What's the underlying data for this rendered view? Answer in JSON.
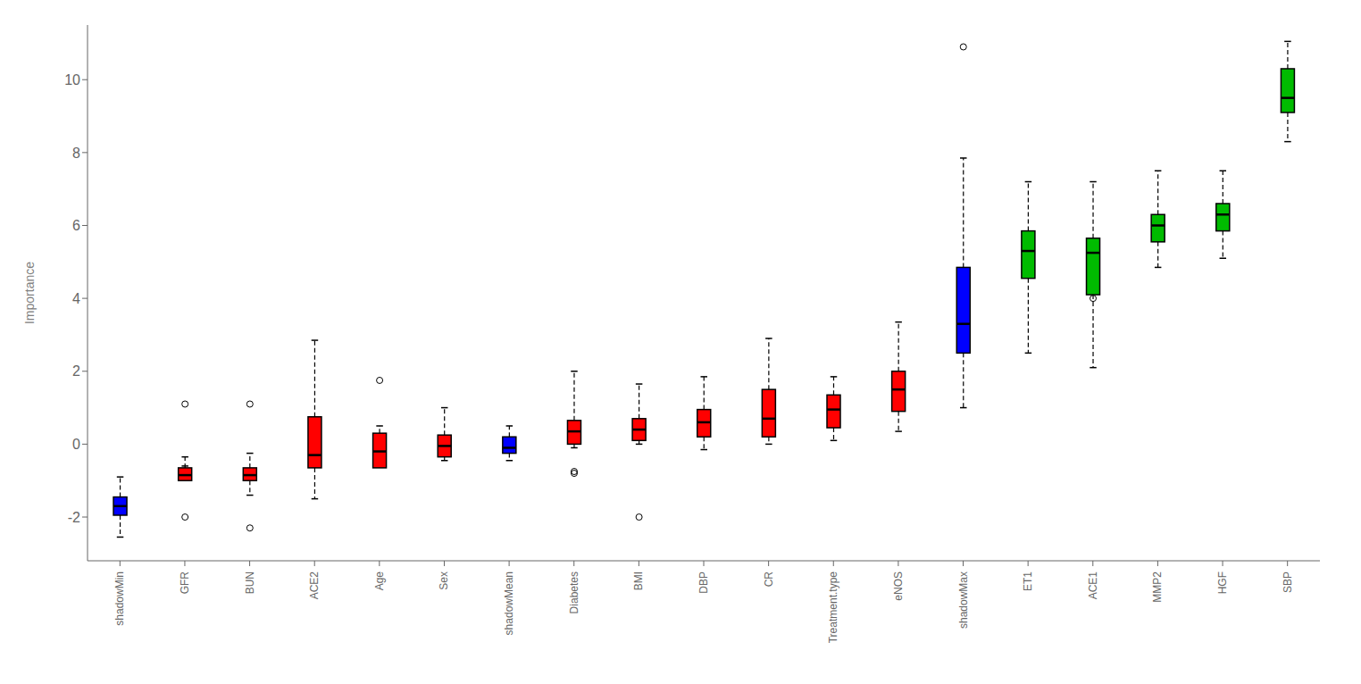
{
  "chart_data": {
    "type": "box",
    "ylabel": "Importance",
    "categories": [
      "shadowMin",
      "GFR",
      "BUN",
      "ACE2",
      "Age",
      "Sex",
      "shadowMean",
      "Diabetes",
      "BMI",
      "DBP",
      "CR",
      "Treatment.type",
      "eNOS",
      "shadowMax",
      "ET1",
      "ACE1",
      "MMP2",
      "HGF",
      "SBP"
    ],
    "colors": [
      "#0000FF",
      "#FF0000",
      "#FF0000",
      "#FF0000",
      "#FF0000",
      "#FF0000",
      "#0000FF",
      "#FF0000",
      "#FF0000",
      "#FF0000",
      "#FF0000",
      "#FF0000",
      "#FF0000",
      "#0000FF",
      "#00BB00",
      "#00BB00",
      "#00BB00",
      "#00BB00",
      "#00BB00"
    ],
    "boxes": [
      {
        "med": -1.7,
        "q1": -1.95,
        "q3": -1.45,
        "whislo": -2.55,
        "whishi": -0.9,
        "fliers": []
      },
      {
        "med": -0.85,
        "q1": -1.0,
        "q3": -0.65,
        "whislo": -0.6,
        "whishi": -0.35,
        "fliers": [
          -2.0,
          1.1
        ]
      },
      {
        "med": -0.85,
        "q1": -1.0,
        "q3": -0.65,
        "whislo": -1.4,
        "whishi": -0.25,
        "fliers": [
          -2.3,
          1.1
        ]
      },
      {
        "med": -0.3,
        "q1": -0.65,
        "q3": 0.75,
        "whislo": -1.5,
        "whishi": 2.85,
        "fliers": []
      },
      {
        "med": -0.2,
        "q1": -0.65,
        "q3": 0.3,
        "whislo": -0.5,
        "whishi": 0.5,
        "fliers": [
          1.75
        ]
      },
      {
        "med": -0.05,
        "q1": -0.35,
        "q3": 0.25,
        "whislo": -0.45,
        "whishi": 1.0,
        "fliers": []
      },
      {
        "med": -0.1,
        "q1": -0.25,
        "q3": 0.2,
        "whislo": -0.45,
        "whishi": 0.5,
        "fliers": []
      },
      {
        "med": 0.35,
        "q1": 0.0,
        "q3": 0.65,
        "whislo": -0.1,
        "whishi": 2.0,
        "fliers": [
          -0.75,
          -0.8
        ]
      },
      {
        "med": 0.4,
        "q1": 0.1,
        "q3": 0.7,
        "whislo": 0.0,
        "whishi": 1.65,
        "fliers": [
          -2.0
        ]
      },
      {
        "med": 0.6,
        "q1": 0.2,
        "q3": 0.95,
        "whislo": -0.15,
        "whishi": 1.85,
        "fliers": []
      },
      {
        "med": 0.7,
        "q1": 0.2,
        "q3": 1.5,
        "whislo": 0.0,
        "whishi": 2.9,
        "fliers": []
      },
      {
        "med": 0.95,
        "q1": 0.45,
        "q3": 1.35,
        "whislo": 0.1,
        "whishi": 1.85,
        "fliers": []
      },
      {
        "med": 1.5,
        "q1": 0.9,
        "q3": 2.0,
        "whislo": 0.35,
        "whishi": 3.35,
        "fliers": []
      },
      {
        "med": 3.3,
        "q1": 2.5,
        "q3": 4.85,
        "whislo": 1.0,
        "whishi": 7.85,
        "fliers": [
          10.9
        ]
      },
      {
        "med": 5.3,
        "q1": 4.55,
        "q3": 5.85,
        "whislo": 2.5,
        "whishi": 7.2,
        "fliers": []
      },
      {
        "med": 5.25,
        "q1": 4.1,
        "q3": 5.65,
        "whislo": 2.1,
        "whishi": 7.2,
        "fliers": [
          4.0
        ]
      },
      {
        "med": 6.0,
        "q1": 5.55,
        "q3": 6.3,
        "whislo": 4.85,
        "whishi": 7.5,
        "fliers": []
      },
      {
        "med": 6.3,
        "q1": 5.85,
        "q3": 6.6,
        "whislo": 5.1,
        "whishi": 7.5,
        "fliers": []
      },
      {
        "med": 9.5,
        "q1": 9.1,
        "q3": 10.3,
        "whislo": 8.3,
        "whishi": 11.05,
        "fliers": []
      }
    ],
    "ylim": [
      -3.2,
      11.5
    ],
    "yticks": [
      -2,
      0,
      2,
      4,
      6,
      8,
      10
    ],
    "grid": false
  }
}
